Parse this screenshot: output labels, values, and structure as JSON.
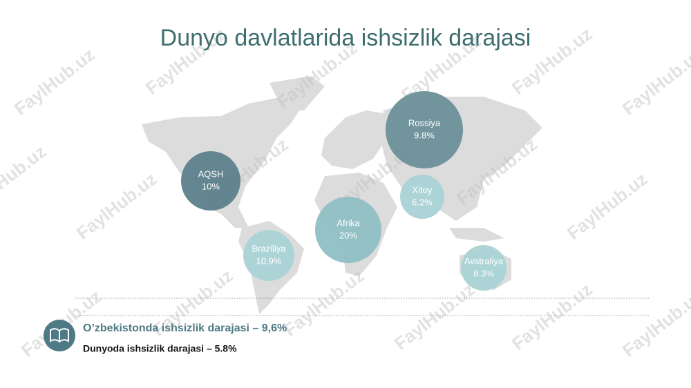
{
  "title": "Dunyo davlatlarida ishsizlik darajasi",
  "bubbles": [
    {
      "name": "AQSH",
      "value": "10%"
    },
    {
      "name": "Rossiya",
      "value": "9.8%"
    },
    {
      "name": "Xitoy",
      "value": "6.2%"
    },
    {
      "name": "Afrika",
      "value": "20%"
    },
    {
      "name": "Braziliya",
      "value": "10.9%"
    },
    {
      "name": "Avstraliya",
      "value": "8.3%"
    }
  ],
  "notes": [
    "O’zbekistonda ishsizlik darajasi – 9,6%",
    "Dunyoda ishsizlik darajasi – 5.8%"
  ],
  "watermark": "FaylHub.uz"
}
